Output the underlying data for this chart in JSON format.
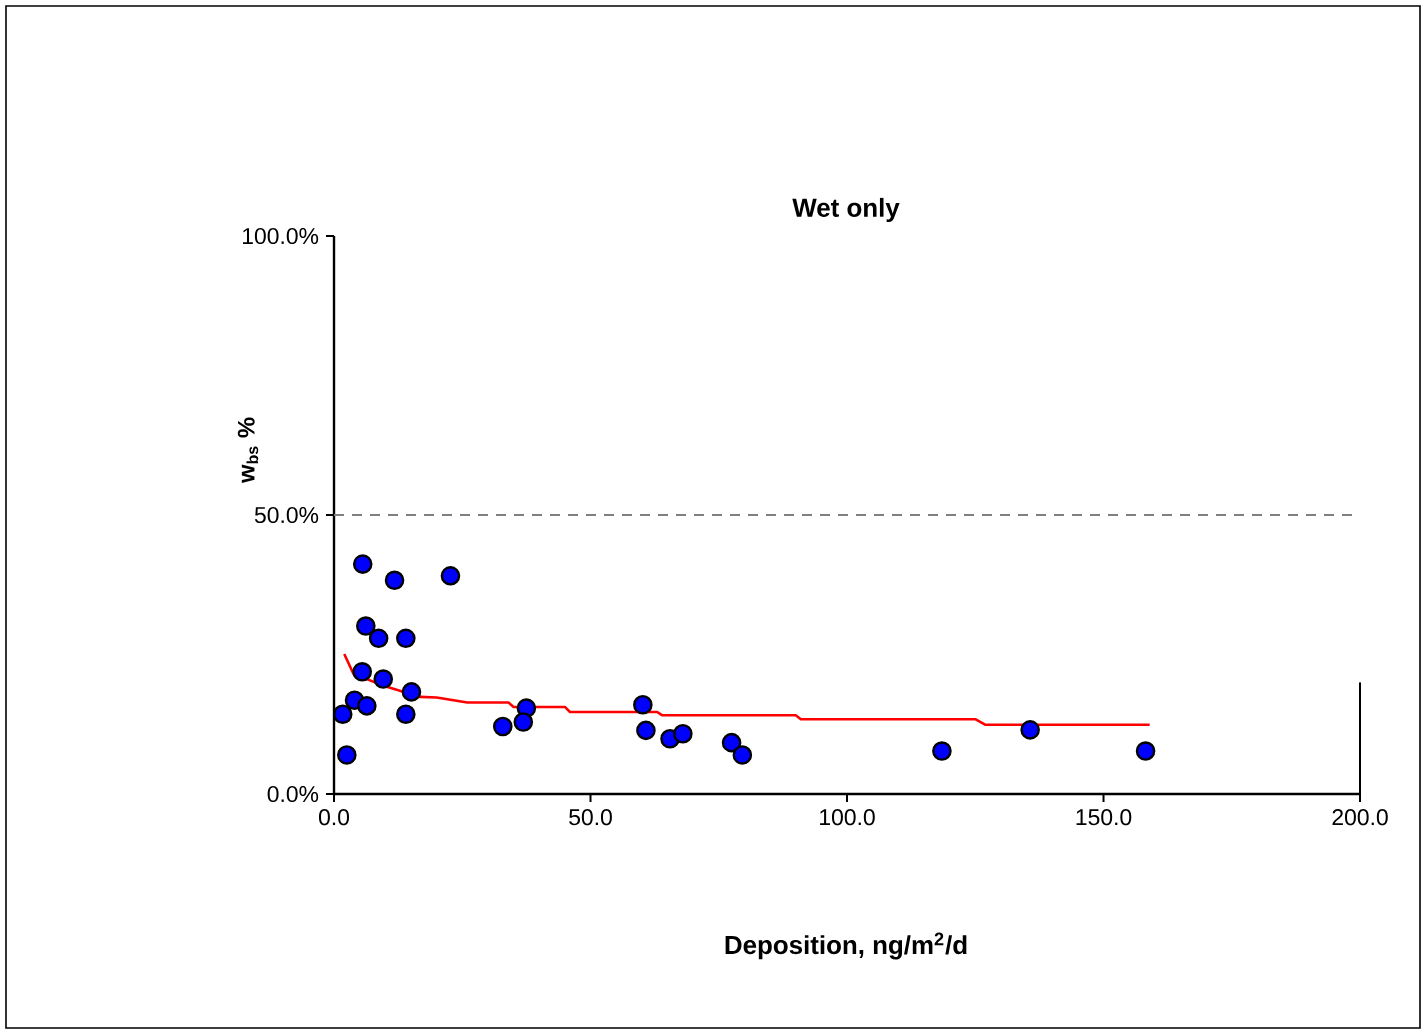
{
  "chart_data": {
    "type": "scatter",
    "title": "Wet only",
    "xlabel": "Deposition, ng/m$^{2}$/d",
    "ylabel": "w$_{bs}$ %",
    "xlim": [
      0,
      200
    ],
    "ylim": [
      0,
      100
    ],
    "xticks": [
      {
        "value": 0,
        "label": "0.0"
      },
      {
        "value": 50,
        "label": "50.0"
      },
      {
        "value": 100,
        "label": "100.0"
      },
      {
        "value": 150,
        "label": "150.0"
      },
      {
        "value": 200,
        "label": "200.0"
      }
    ],
    "yticks": [
      {
        "value": 0,
        "label": "0.0%"
      },
      {
        "value": 50,
        "label": "50.0%"
      },
      {
        "value": 100,
        "label": "100.0%"
      }
    ],
    "ref_lines": [
      {
        "axis": "y",
        "value": 50,
        "color": "#808080",
        "line_style": "dashed"
      }
    ],
    "series": [
      {
        "color": "#0000ff",
        "marker": "circle",
        "x": [
          5.6,
          11.8,
          22.7,
          6.2,
          8.7,
          14.0,
          5.5,
          9.6,
          15.1,
          4.0,
          6.4,
          1.7,
          14.0,
          2.5,
          32.9,
          37.5,
          36.9,
          60.2,
          60.8,
          65.5,
          68.0,
          77.5,
          79.6,
          118.5,
          135.7,
          158.2
        ],
        "values": [
          41.2,
          38.3,
          39.1,
          30.1,
          27.9,
          27.9,
          21.9,
          20.6,
          18.3,
          16.8,
          15.8,
          14.3,
          14.3,
          7.0,
          12.1,
          15.4,
          12.9,
          16.0,
          11.4,
          9.9,
          10.8,
          9.2,
          7.0,
          7.7,
          11.5,
          7.7
        ]
      },
      {
        "type": "line",
        "color": "#ff0000",
        "marker": "none",
        "line_style": "solid",
        "x": [
          2.0,
          3.8,
          10.3,
          16.8,
          20,
          26,
          34,
          35,
          45,
          46,
          63,
          64,
          90,
          91,
          125,
          127,
          159
        ],
        "values": [
          25.1,
          21.5,
          19.2,
          17.4,
          17.3,
          16.4,
          16.4,
          15.6,
          15.6,
          14.7,
          14.7,
          14.1,
          14.1,
          13.4,
          13.4,
          12.4,
          12.4
        ]
      }
    ]
  }
}
